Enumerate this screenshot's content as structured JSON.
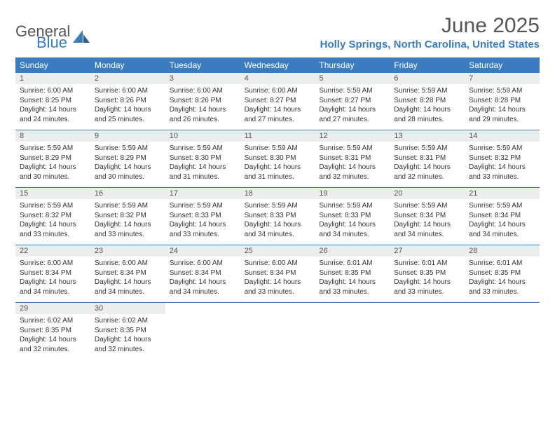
{
  "logo": {
    "word1": "General",
    "word2": "Blue"
  },
  "title": {
    "month": "June 2025",
    "location": "Holly Springs, North Carolina, United States"
  },
  "colors": {
    "accent": "#3b7bbf",
    "header_bg": "#3b7bbf",
    "daynum_bg": "#eceded",
    "text": "#333333",
    "muted": "#555555"
  },
  "dayNames": [
    "Sunday",
    "Monday",
    "Tuesday",
    "Wednesday",
    "Thursday",
    "Friday",
    "Saturday"
  ],
  "weeks": [
    [
      {
        "n": "1",
        "sr": "6:00 AM",
        "ss": "8:25 PM",
        "dl": "14 hours and 24 minutes."
      },
      {
        "n": "2",
        "sr": "6:00 AM",
        "ss": "8:26 PM",
        "dl": "14 hours and 25 minutes."
      },
      {
        "n": "3",
        "sr": "6:00 AM",
        "ss": "8:26 PM",
        "dl": "14 hours and 26 minutes."
      },
      {
        "n": "4",
        "sr": "6:00 AM",
        "ss": "8:27 PM",
        "dl": "14 hours and 27 minutes."
      },
      {
        "n": "5",
        "sr": "5:59 AM",
        "ss": "8:27 PM",
        "dl": "14 hours and 27 minutes."
      },
      {
        "n": "6",
        "sr": "5:59 AM",
        "ss": "8:28 PM",
        "dl": "14 hours and 28 minutes."
      },
      {
        "n": "7",
        "sr": "5:59 AM",
        "ss": "8:28 PM",
        "dl": "14 hours and 29 minutes."
      }
    ],
    [
      {
        "n": "8",
        "sr": "5:59 AM",
        "ss": "8:29 PM",
        "dl": "14 hours and 30 minutes."
      },
      {
        "n": "9",
        "sr": "5:59 AM",
        "ss": "8:29 PM",
        "dl": "14 hours and 30 minutes."
      },
      {
        "n": "10",
        "sr": "5:59 AM",
        "ss": "8:30 PM",
        "dl": "14 hours and 31 minutes."
      },
      {
        "n": "11",
        "sr": "5:59 AM",
        "ss": "8:30 PM",
        "dl": "14 hours and 31 minutes."
      },
      {
        "n": "12",
        "sr": "5:59 AM",
        "ss": "8:31 PM",
        "dl": "14 hours and 32 minutes."
      },
      {
        "n": "13",
        "sr": "5:59 AM",
        "ss": "8:31 PM",
        "dl": "14 hours and 32 minutes."
      },
      {
        "n": "14",
        "sr": "5:59 AM",
        "ss": "8:32 PM",
        "dl": "14 hours and 33 minutes."
      }
    ],
    [
      {
        "n": "15",
        "sr": "5:59 AM",
        "ss": "8:32 PM",
        "dl": "14 hours and 33 minutes."
      },
      {
        "n": "16",
        "sr": "5:59 AM",
        "ss": "8:32 PM",
        "dl": "14 hours and 33 minutes."
      },
      {
        "n": "17",
        "sr": "5:59 AM",
        "ss": "8:33 PM",
        "dl": "14 hours and 33 minutes."
      },
      {
        "n": "18",
        "sr": "5:59 AM",
        "ss": "8:33 PM",
        "dl": "14 hours and 34 minutes."
      },
      {
        "n": "19",
        "sr": "5:59 AM",
        "ss": "8:33 PM",
        "dl": "14 hours and 34 minutes."
      },
      {
        "n": "20",
        "sr": "5:59 AM",
        "ss": "8:34 PM",
        "dl": "14 hours and 34 minutes."
      },
      {
        "n": "21",
        "sr": "5:59 AM",
        "ss": "8:34 PM",
        "dl": "14 hours and 34 minutes."
      }
    ],
    [
      {
        "n": "22",
        "sr": "6:00 AM",
        "ss": "8:34 PM",
        "dl": "14 hours and 34 minutes."
      },
      {
        "n": "23",
        "sr": "6:00 AM",
        "ss": "8:34 PM",
        "dl": "14 hours and 34 minutes."
      },
      {
        "n": "24",
        "sr": "6:00 AM",
        "ss": "8:34 PM",
        "dl": "14 hours and 34 minutes."
      },
      {
        "n": "25",
        "sr": "6:00 AM",
        "ss": "8:34 PM",
        "dl": "14 hours and 33 minutes."
      },
      {
        "n": "26",
        "sr": "6:01 AM",
        "ss": "8:35 PM",
        "dl": "14 hours and 33 minutes."
      },
      {
        "n": "27",
        "sr": "6:01 AM",
        "ss": "8:35 PM",
        "dl": "14 hours and 33 minutes."
      },
      {
        "n": "28",
        "sr": "6:01 AM",
        "ss": "8:35 PM",
        "dl": "14 hours and 33 minutes."
      }
    ],
    [
      {
        "n": "29",
        "sr": "6:02 AM",
        "ss": "8:35 PM",
        "dl": "14 hours and 32 minutes."
      },
      {
        "n": "30",
        "sr": "6:02 AM",
        "ss": "8:35 PM",
        "dl": "14 hours and 32 minutes."
      },
      null,
      null,
      null,
      null,
      null
    ]
  ],
  "labels": {
    "sunrise": "Sunrise:",
    "sunset": "Sunset:",
    "daylight": "Daylight:"
  }
}
